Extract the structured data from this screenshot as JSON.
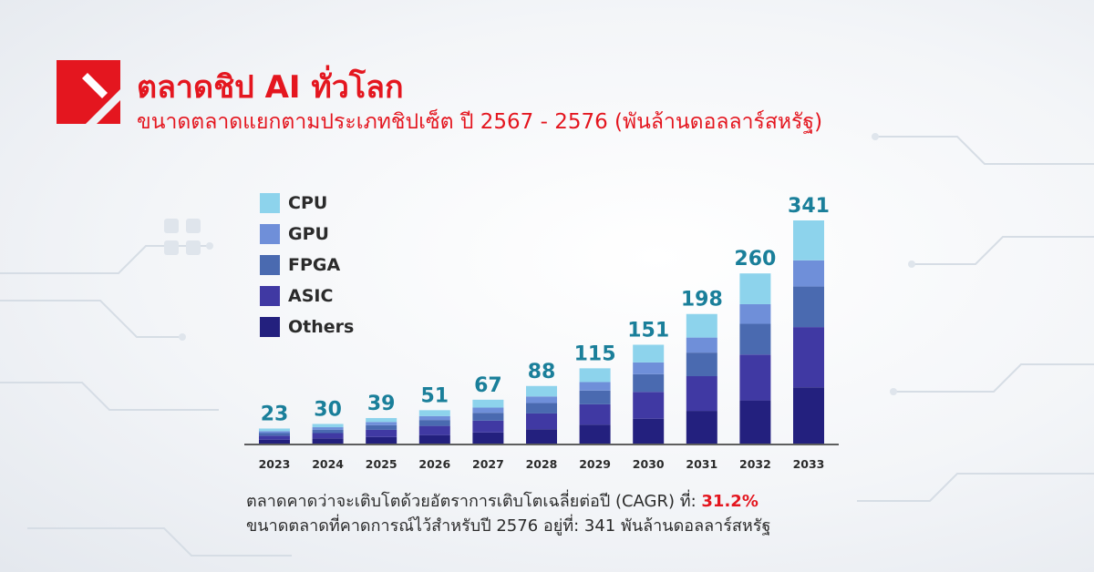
{
  "header": {
    "title": "ตลาดชิป AI ทั่วโลก",
    "subtitle": "ขนาดตลาดแยกตามประเภทชิปเซ็ต ปี 2567 - 2576 (พันล้านดอลลาร์สหรัฐ)"
  },
  "colors": {
    "accent": "#e4161f",
    "value_label": "#1a7f9a",
    "text": "#2b2b2b"
  },
  "legend": [
    {
      "label": "CPU",
      "color": "#8dd3ec"
    },
    {
      "label": "GPU",
      "color": "#6f8fd9"
    },
    {
      "label": "FPGA",
      "color": "#4a6ab0"
    },
    {
      "label": "ASIC",
      "color": "#4039a3"
    },
    {
      "label": "Others",
      "color": "#23207e"
    }
  ],
  "chart_data": {
    "type": "bar",
    "stacked": true,
    "categories": [
      "2023",
      "2024",
      "2025",
      "2026",
      "2027",
      "2028",
      "2029",
      "2030",
      "2031",
      "2032",
      "2033"
    ],
    "totals": [
      23,
      30,
      39,
      51,
      67,
      88,
      115,
      151,
      198,
      260,
      341
    ],
    "series": [
      {
        "name": "Others",
        "color": "#23207e",
        "values": [
          6,
          8,
          10,
          13,
          17,
          22,
          29,
          38,
          50,
          66,
          86
        ]
      },
      {
        "name": "ASIC",
        "color": "#4039a3",
        "values": [
          6,
          8,
          11,
          14,
          18,
          24,
          31,
          41,
          53,
          70,
          92
        ]
      },
      {
        "name": "FPGA",
        "color": "#4a6ab0",
        "values": [
          4,
          5,
          7,
          9,
          12,
          16,
          21,
          27,
          36,
          47,
          62
        ]
      },
      {
        "name": "GPU",
        "color": "#6f8fd9",
        "values": [
          3,
          4,
          5,
          6,
          8,
          10,
          13,
          18,
          23,
          30,
          40
        ]
      },
      {
        "name": "CPU",
        "color": "#8dd3ec",
        "values": [
          4,
          5,
          6,
          9,
          12,
          16,
          21,
          27,
          36,
          47,
          61
        ]
      }
    ],
    "ylim": [
      0,
      341
    ],
    "grid": false,
    "legend_position": "top-left"
  },
  "footer": {
    "line1_prefix": "ตลาดคาดว่าจะเติบโตด้วยอัตราการเติบโตเฉลี่ยต่อปี (CAGR) ที่: ",
    "cagr": "31.2%",
    "line2": "ขนาดตลาดที่คาดการณ์ไว้สำหรับปี 2576 อยู่ที่: 341 พันล้านดอลลาร์สหรัฐ"
  }
}
